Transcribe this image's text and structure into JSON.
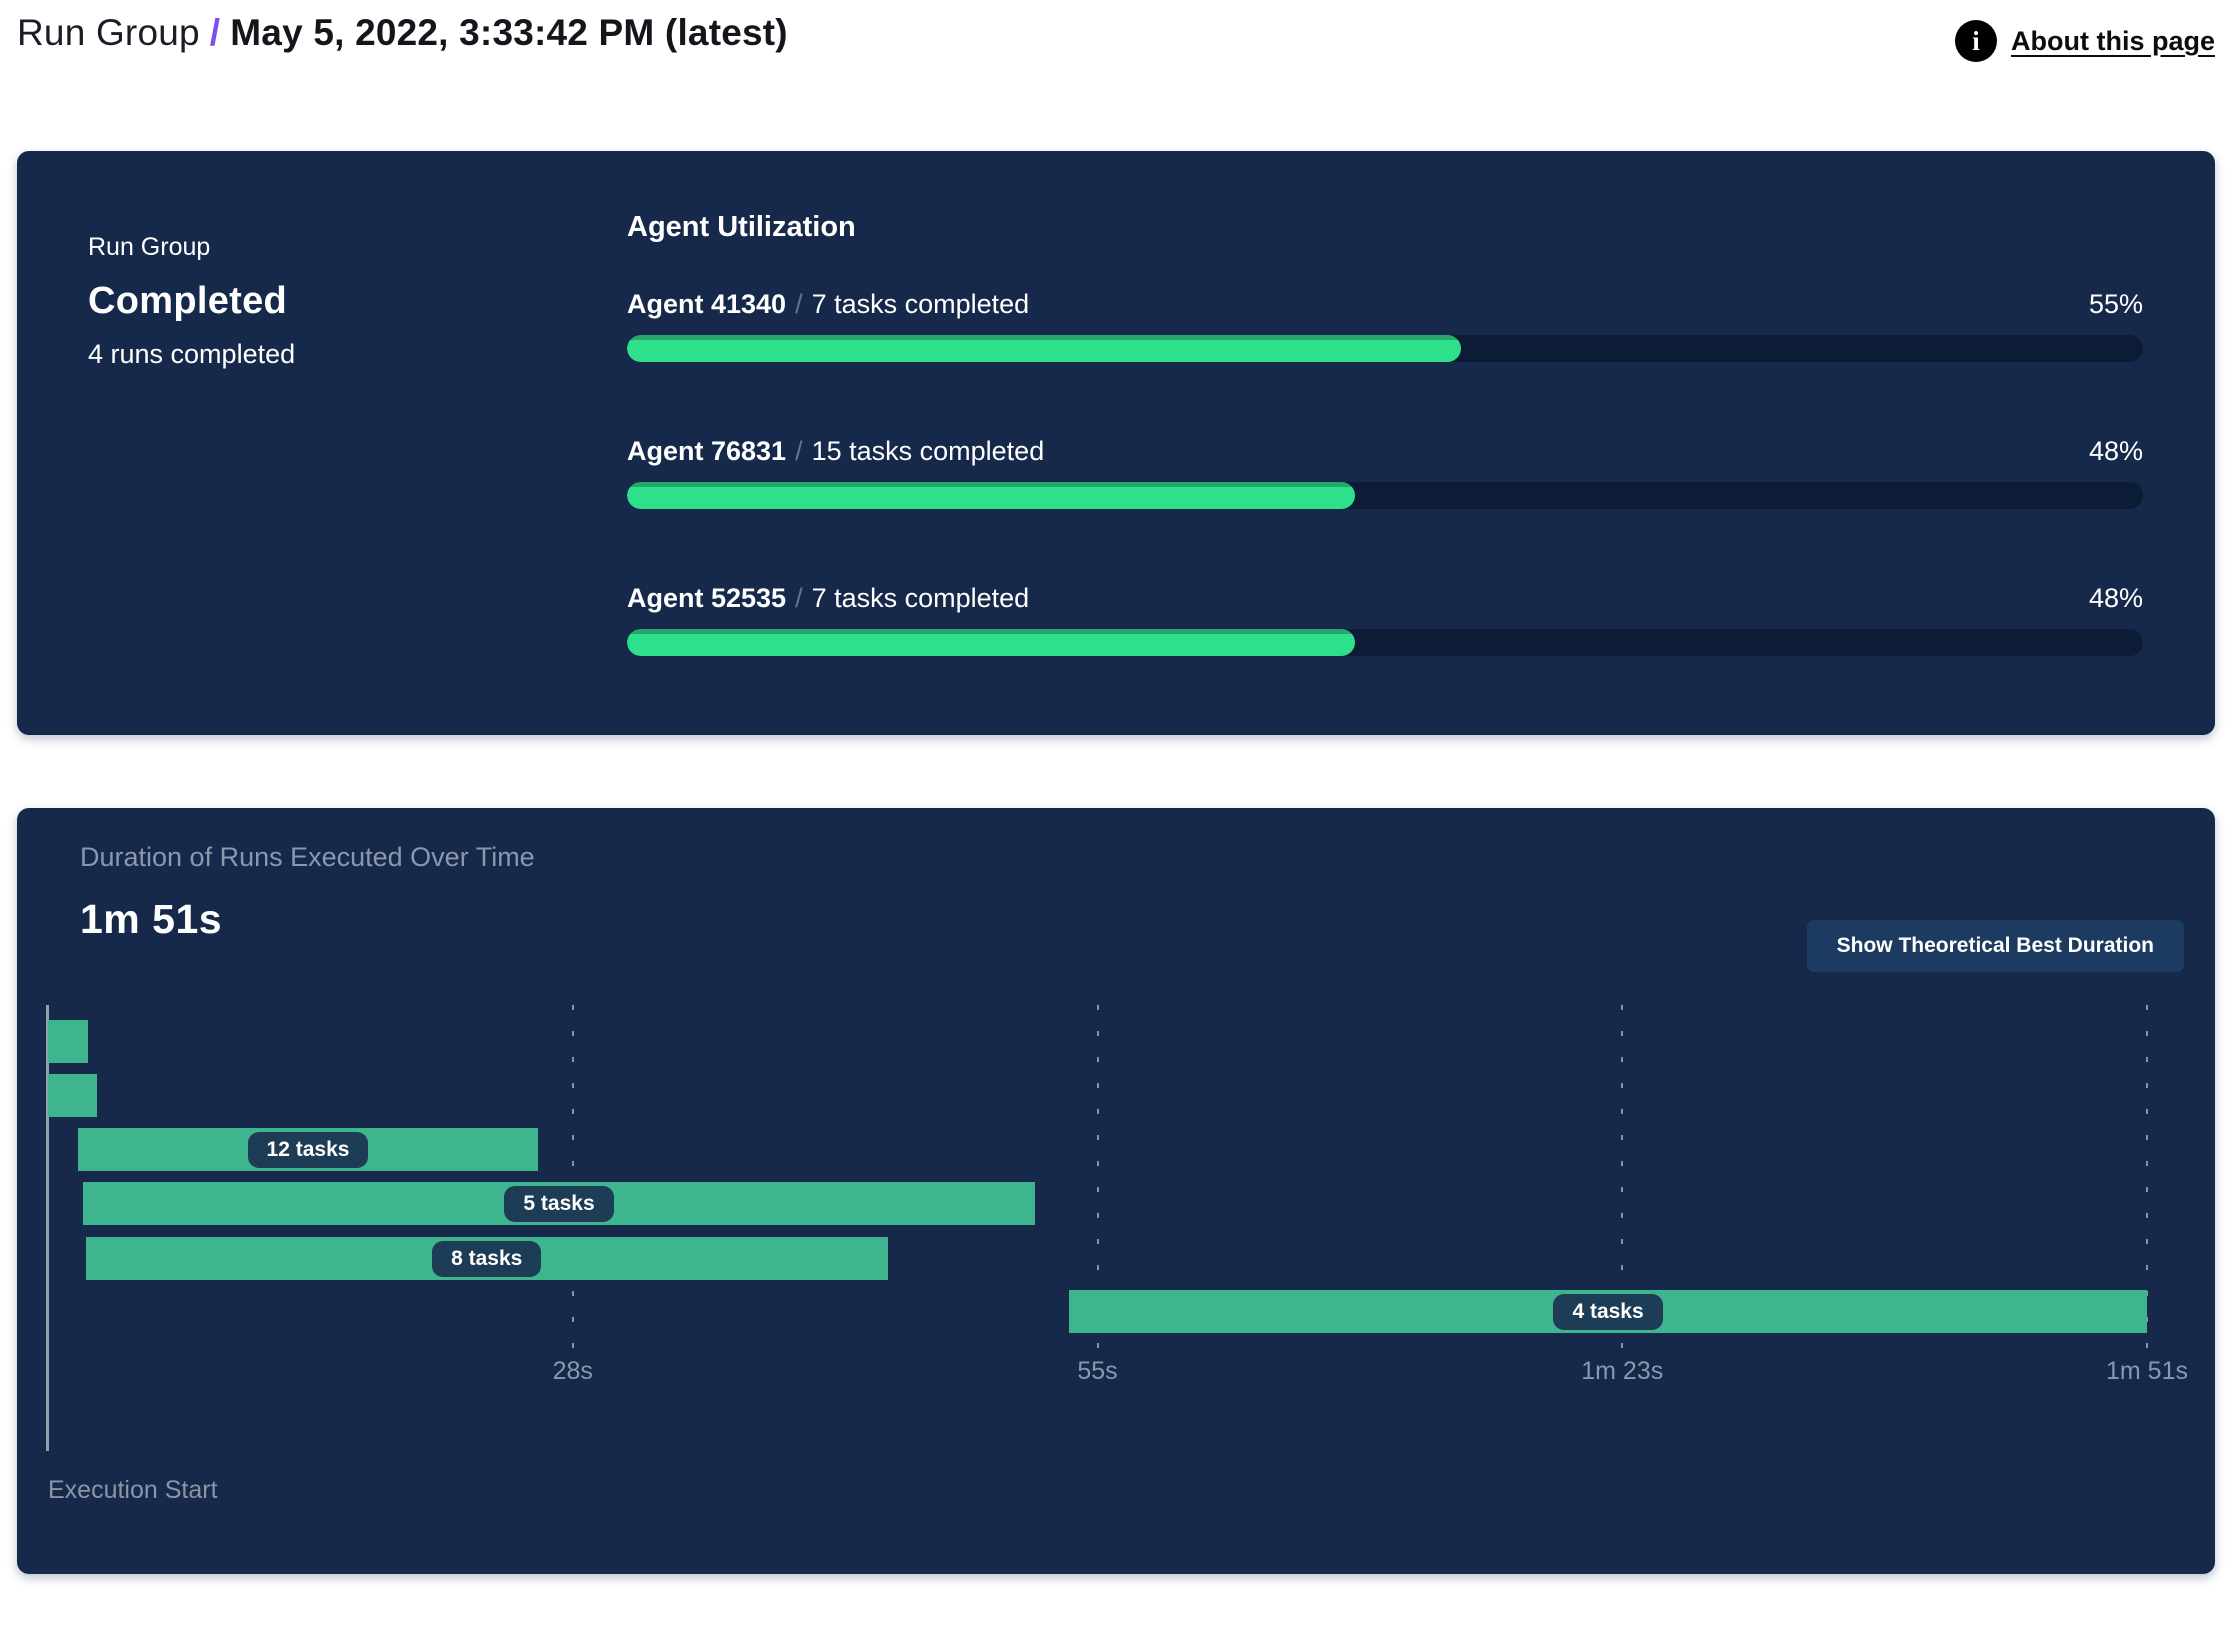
{
  "header": {
    "breadcrumb_root": "Run Group",
    "breadcrumb_separator": "/",
    "breadcrumb_current": "May 5, 2022, 3:33:42 PM (latest)",
    "about_link": "About this page",
    "info_icon_glyph": "i"
  },
  "colors": {
    "panel_bg": "#17294a",
    "accent_purple": "#7b4df2",
    "progress_fill": "#2ee08c",
    "progress_fill_rim": "#28a76d",
    "progress_track": "#0c1c36",
    "gantt_bar_green": "#3fb58e",
    "pill_bg": "#1d3c55",
    "muted_text": "#8b98ab",
    "button_bg": "#1d3b60"
  },
  "run_group_summary": {
    "label": "Run Group",
    "status": "Completed",
    "sub_status": "4 runs completed"
  },
  "agent_utilization": {
    "title": "Agent Utilization",
    "separator": "/",
    "agents": [
      {
        "name": "Agent 41340",
        "tasks": "7 tasks completed",
        "percent": 55,
        "percent_label": "55%"
      },
      {
        "name": "Agent 76831",
        "tasks": "15 tasks completed",
        "percent": 48,
        "percent_label": "48%"
      },
      {
        "name": "Agent 52535",
        "tasks": "7 tasks completed",
        "percent": 48,
        "percent_label": "48%"
      }
    ]
  },
  "duration_panel": {
    "title": "Duration of Runs Executed Over Time",
    "total_duration": "1m 51s",
    "button_label": "Show Theoretical Best Duration",
    "axis_origin_label": "Execution Start"
  },
  "chart_data": {
    "type": "bar",
    "subtype": "horizontal-gantt",
    "title": "Duration of Runs Executed Over Time",
    "xlabel": "Execution Start",
    "x_unit": "seconds",
    "x_range": [
      0,
      111
    ],
    "grid": "dashed-vertical",
    "ticks": [
      {
        "t": 27.75,
        "label": "28s"
      },
      {
        "t": 55.5,
        "label": "55s"
      },
      {
        "t": 83.25,
        "label": "1m 23s"
      },
      {
        "t": 111,
        "label": "1m 51s"
      }
    ],
    "runs": [
      {
        "start": 0,
        "end": 2.1,
        "label": ""
      },
      {
        "start": 0,
        "end": 2.6,
        "label": ""
      },
      {
        "start": 1.6,
        "end": 25.9,
        "label": "12 tasks"
      },
      {
        "start": 1.85,
        "end": 52.2,
        "label": "5 tasks"
      },
      {
        "start": 2.0,
        "end": 44.4,
        "label": "8 tasks"
      },
      {
        "start": 54.0,
        "end": 111,
        "label": "4 tasks"
      }
    ]
  }
}
